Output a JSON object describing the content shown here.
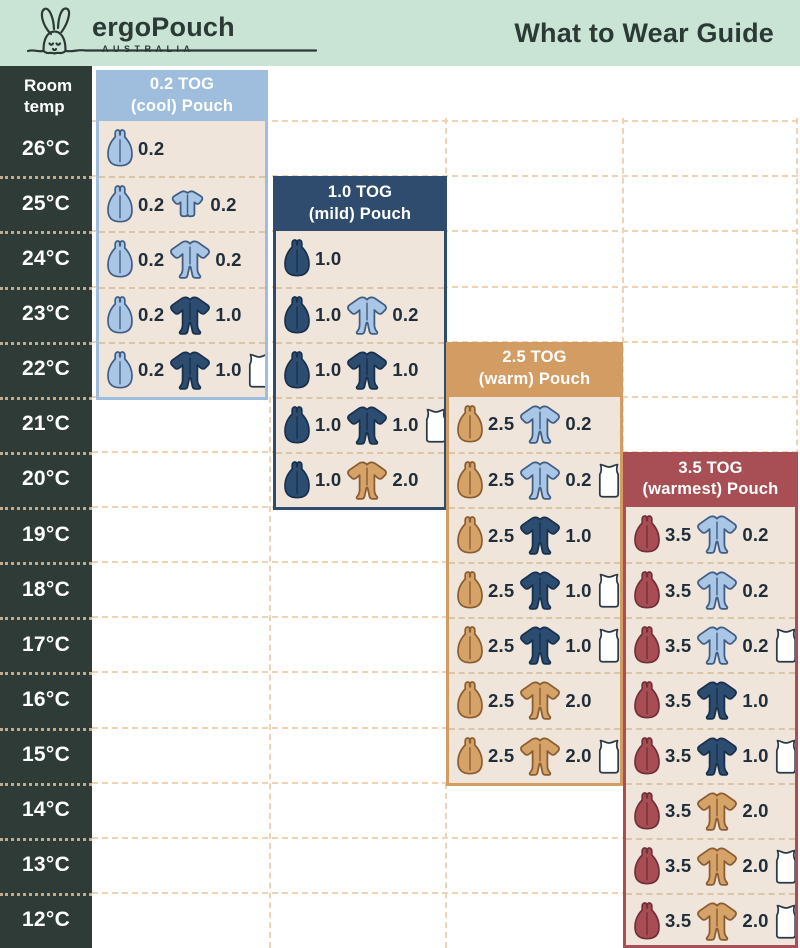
{
  "header": {
    "logo_text": "ergoPouch",
    "logo_sub": "AUSTRALIA",
    "title": "What to Wear Guide"
  },
  "room_temp_label": "Room\ntemp",
  "temps": [
    "26°C",
    "25°C",
    "24°C",
    "23°C",
    "22°C",
    "21°C",
    "20°C",
    "19°C",
    "18°C",
    "17°C",
    "16°C",
    "15°C",
    "14°C",
    "13°C",
    "12°C"
  ],
  "colors": {
    "topbar_bg": "#c9e4d5",
    "title_text": "#2c3a36",
    "temp_col_bg": "#2e3b37",
    "temp_col_text": "#ffffff",
    "card_body_bg": "#efe5da",
    "grid_dash": "#eed3b4",
    "card_sep_dash": "#dcc5a6",
    "value_text": "#202e3b",
    "icon_colors": {
      "lightblue": {
        "fill": "#a9c6e6",
        "stroke": "#3f5d82"
      },
      "navy": {
        "fill": "#2d4d70",
        "stroke": "#17304d"
      },
      "tan": {
        "fill": "#d5a268",
        "stroke": "#8a5c31"
      },
      "red": {
        "fill": "#a84d53",
        "stroke": "#6f3039"
      },
      "white": {
        "fill": "#ffffff",
        "stroke": "#2b3947"
      }
    }
  },
  "cards": [
    {
      "title_line1": "0.2 TOG",
      "title_line2": "(cool) Pouch",
      "header_color": "#9fbede",
      "rows": [
        {
          "temp": "26°C",
          "items": [
            {
              "icon": "pouch",
              "color": "lightblue",
              "value": "0.2"
            }
          ]
        },
        {
          "temp": "25°C",
          "items": [
            {
              "icon": "pouch",
              "color": "lightblue",
              "value": "0.2"
            },
            {
              "icon": "romper",
              "color": "lightblue",
              "value": "0.2"
            }
          ]
        },
        {
          "temp": "24°C",
          "items": [
            {
              "icon": "pouch",
              "color": "lightblue",
              "value": "0.2"
            },
            {
              "icon": "sleepsuit",
              "color": "lightblue",
              "value": "0.2"
            }
          ]
        },
        {
          "temp": "23°C",
          "items": [
            {
              "icon": "pouch",
              "color": "lightblue",
              "value": "0.2"
            },
            {
              "icon": "sleepsuit",
              "color": "navy",
              "value": "1.0"
            }
          ]
        },
        {
          "temp": "22°C",
          "items": [
            {
              "icon": "pouch",
              "color": "lightblue",
              "value": "0.2"
            },
            {
              "icon": "sleepsuit",
              "color": "navy",
              "value": "1.0"
            },
            {
              "icon": "singlet",
              "color": "white"
            }
          ]
        }
      ]
    },
    {
      "title_line1": "1.0 TOG",
      "title_line2": "(mild) Pouch",
      "header_color": "#2f4b6e",
      "rows": [
        {
          "temp": "24°C",
          "items": [
            {
              "icon": "pouch",
              "color": "navy",
              "value": "1.0"
            }
          ]
        },
        {
          "temp": "23°C",
          "items": [
            {
              "icon": "pouch",
              "color": "navy",
              "value": "1.0"
            },
            {
              "icon": "sleepsuit",
              "color": "lightblue",
              "value": "0.2"
            }
          ]
        },
        {
          "temp": "22°C",
          "items": [
            {
              "icon": "pouch",
              "color": "navy",
              "value": "1.0"
            },
            {
              "icon": "sleepsuit",
              "color": "navy",
              "value": "1.0"
            }
          ]
        },
        {
          "temp": "21°C",
          "items": [
            {
              "icon": "pouch",
              "color": "navy",
              "value": "1.0"
            },
            {
              "icon": "sleepsuit",
              "color": "navy",
              "value": "1.0"
            },
            {
              "icon": "singlet",
              "color": "white"
            }
          ]
        },
        {
          "temp": "20°C",
          "items": [
            {
              "icon": "pouch",
              "color": "navy",
              "value": "1.0"
            },
            {
              "icon": "sleepsuit",
              "color": "tan",
              "value": "2.0"
            }
          ]
        }
      ]
    },
    {
      "title_line1": "2.5 TOG",
      "title_line2": "(warm) Pouch",
      "header_color": "#d39c62",
      "rows": [
        {
          "temp": "21°C",
          "items": [
            {
              "icon": "pouch",
              "color": "tan",
              "value": "2.5"
            },
            {
              "icon": "sleepsuit",
              "color": "lightblue",
              "value": "0.2"
            }
          ]
        },
        {
          "temp": "20°C",
          "items": [
            {
              "icon": "pouch",
              "color": "tan",
              "value": "2.5"
            },
            {
              "icon": "sleepsuit",
              "color": "lightblue",
              "value": "0.2"
            },
            {
              "icon": "singlet",
              "color": "white"
            }
          ]
        },
        {
          "temp": "19°C",
          "items": [
            {
              "icon": "pouch",
              "color": "tan",
              "value": "2.5"
            },
            {
              "icon": "sleepsuit",
              "color": "navy",
              "value": "1.0"
            }
          ]
        },
        {
          "temp": "18°C",
          "items": [
            {
              "icon": "pouch",
              "color": "tan",
              "value": "2.5"
            },
            {
              "icon": "sleepsuit",
              "color": "navy",
              "value": "1.0"
            },
            {
              "icon": "singlet",
              "color": "white"
            }
          ]
        },
        {
          "temp": "17°C",
          "items": [
            {
              "icon": "pouch",
              "color": "tan",
              "value": "2.5"
            },
            {
              "icon": "sleepsuit",
              "color": "navy",
              "value": "1.0"
            },
            {
              "icon": "singlet",
              "color": "white"
            }
          ]
        },
        {
          "temp": "16°C",
          "items": [
            {
              "icon": "pouch",
              "color": "tan",
              "value": "2.5"
            },
            {
              "icon": "sleepsuit",
              "color": "tan",
              "value": "2.0"
            }
          ]
        },
        {
          "temp": "15°C",
          "items": [
            {
              "icon": "pouch",
              "color": "tan",
              "value": "2.5"
            },
            {
              "icon": "sleepsuit",
              "color": "tan",
              "value": "2.0"
            },
            {
              "icon": "singlet",
              "color": "white"
            }
          ]
        }
      ]
    },
    {
      "title_line1": "3.5 TOG",
      "title_line2": "(warmest) Pouch",
      "header_color": "#a84f55",
      "rows": [
        {
          "temp": "19°C",
          "items": [
            {
              "icon": "pouch",
              "color": "red",
              "value": "3.5"
            },
            {
              "icon": "sleepsuit",
              "color": "lightblue",
              "value": "0.2"
            }
          ]
        },
        {
          "temp": "18°C",
          "items": [
            {
              "icon": "pouch",
              "color": "red",
              "value": "3.5"
            },
            {
              "icon": "sleepsuit",
              "color": "lightblue",
              "value": "0.2"
            }
          ]
        },
        {
          "temp": "17°C",
          "items": [
            {
              "icon": "pouch",
              "color": "red",
              "value": "3.5"
            },
            {
              "icon": "sleepsuit",
              "color": "lightblue",
              "value": "0.2"
            },
            {
              "icon": "singlet",
              "color": "white"
            }
          ]
        },
        {
          "temp": "16°C",
          "items": [
            {
              "icon": "pouch",
              "color": "red",
              "value": "3.5"
            },
            {
              "icon": "sleepsuit",
              "color": "navy",
              "value": "1.0"
            }
          ]
        },
        {
          "temp": "15°C",
          "items": [
            {
              "icon": "pouch",
              "color": "red",
              "value": "3.5"
            },
            {
              "icon": "sleepsuit",
              "color": "navy",
              "value": "1.0"
            },
            {
              "icon": "singlet",
              "color": "white"
            }
          ]
        },
        {
          "temp": "14°C",
          "items": [
            {
              "icon": "pouch",
              "color": "red",
              "value": "3.5"
            },
            {
              "icon": "sleepsuit",
              "color": "tan",
              "value": "2.0"
            }
          ]
        },
        {
          "temp": "13°C",
          "items": [
            {
              "icon": "pouch",
              "color": "red",
              "value": "3.5"
            },
            {
              "icon": "sleepsuit",
              "color": "tan",
              "value": "2.0"
            },
            {
              "icon": "singlet",
              "color": "white"
            }
          ]
        },
        {
          "temp": "12°C",
          "items": [
            {
              "icon": "pouch",
              "color": "red",
              "value": "3.5"
            },
            {
              "icon": "sleepsuit",
              "color": "tan",
              "value": "2.0"
            },
            {
              "icon": "singlet",
              "color": "white"
            }
          ]
        }
      ]
    }
  ],
  "chart_data": {
    "type": "table",
    "title": "What to Wear Guide",
    "columns": [
      "Room temp",
      "0.2 TOG (cool) Pouch",
      "1.0 TOG (mild) Pouch",
      "2.5 TOG (warm) Pouch",
      "3.5 TOG (warmest) Pouch"
    ],
    "rows": [
      [
        "26°C",
        "0.2 pouch",
        "",
        "",
        ""
      ],
      [
        "25°C",
        "0.2 pouch + 0.2 romper",
        "",
        "",
        ""
      ],
      [
        "24°C",
        "0.2 pouch + 0.2 sleepsuit",
        "1.0 pouch",
        "",
        ""
      ],
      [
        "23°C",
        "0.2 pouch + 1.0 sleepsuit",
        "1.0 pouch + 0.2 sleepsuit",
        "",
        ""
      ],
      [
        "22°C",
        "0.2 pouch + 1.0 sleepsuit + singlet",
        "1.0 pouch + 1.0 sleepsuit",
        "",
        ""
      ],
      [
        "21°C",
        "",
        "1.0 pouch + 1.0 sleepsuit + singlet",
        "2.5 pouch + 0.2 sleepsuit",
        ""
      ],
      [
        "20°C",
        "",
        "1.0 pouch + 2.0 sleepsuit",
        "2.5 pouch + 0.2 sleepsuit + singlet",
        ""
      ],
      [
        "19°C",
        "",
        "",
        "2.5 pouch + 1.0 sleepsuit",
        "3.5 pouch + 0.2 sleepsuit"
      ],
      [
        "18°C",
        "",
        "",
        "2.5 pouch + 1.0 sleepsuit + singlet",
        "3.5 pouch + 0.2 sleepsuit"
      ],
      [
        "17°C",
        "",
        "",
        "2.5 pouch + 1.0 sleepsuit + singlet",
        "3.5 pouch + 0.2 sleepsuit + singlet"
      ],
      [
        "16°C",
        "",
        "",
        "2.5 pouch + 2.0 sleepsuit",
        "3.5 pouch + 1.0 sleepsuit"
      ],
      [
        "15°C",
        "",
        "",
        "2.5 pouch + 2.0 sleepsuit + singlet",
        "3.5 pouch + 1.0 sleepsuit + singlet"
      ],
      [
        "14°C",
        "",
        "",
        "",
        "3.5 pouch + 2.0 sleepsuit"
      ],
      [
        "13°C",
        "",
        "",
        "",
        "3.5 pouch + 2.0 sleepsuit + singlet"
      ],
      [
        "12°C",
        "",
        "",
        "",
        "3.5 pouch + 2.0 sleepsuit + singlet"
      ]
    ]
  }
}
